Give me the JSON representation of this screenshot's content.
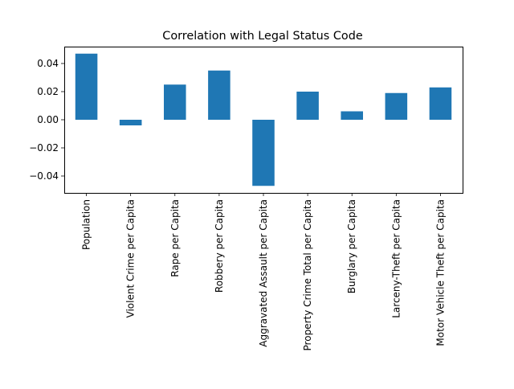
{
  "chart_data": {
    "type": "bar",
    "title": "Correlation with Legal Status Code",
    "xlabel": "",
    "ylabel": "",
    "categories": [
      "Population",
      "Violent Crime per Capita",
      "Rape per Capita",
      "Robbery per Capita",
      "Aggravated Assault per Capita",
      "Property Crime Total per Capita",
      "Burglary per Capita",
      "Larceny-Theft per Capita",
      "Motor Vehicle Theft per Capita"
    ],
    "values": [
      0.047,
      -0.004,
      0.025,
      0.035,
      -0.047,
      0.02,
      0.006,
      0.019,
      0.023
    ],
    "ylim": [
      -0.052,
      0.052
    ],
    "yticks": [
      -0.04,
      -0.02,
      0.0,
      0.02,
      0.04
    ],
    "ytick_labels": [
      "−0.04",
      "−0.02",
      "0.00",
      "0.02",
      "0.04"
    ],
    "bar_color": "#1f77b4",
    "grid": false,
    "legend": false
  }
}
